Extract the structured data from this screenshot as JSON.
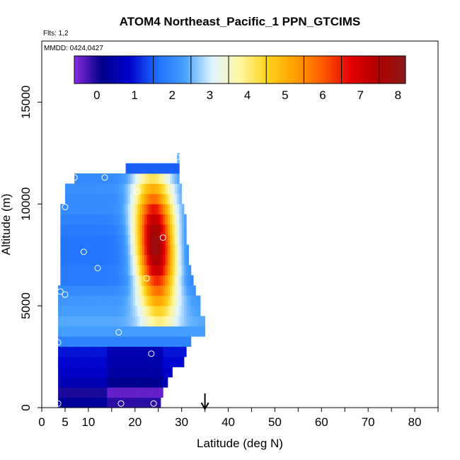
{
  "chart_data": {
    "type": "heatmap",
    "title": "ATOM4 Northeast_Pacific_1 PPN_GTCIMS",
    "annotations": {
      "flights": "Flts: 1,2",
      "dates": "MMDD: 0424,0427"
    },
    "xlabel": "Latitude (deg N)",
    "ylabel": "Altitude (m)",
    "xlim": [
      0,
      85
    ],
    "ylim": [
      0,
      18000
    ],
    "x_ticks": [
      0,
      5,
      10,
      20,
      30,
      40,
      50,
      60,
      70,
      80
    ],
    "x_minor_ticks": [
      15,
      25,
      35,
      45,
      55,
      65,
      75,
      85
    ],
    "y_ticks": [
      0,
      5000,
      10000,
      15000
    ],
    "colorbar": {
      "min": -0.6,
      "max": 8.2,
      "tick_values": [
        0,
        1,
        2,
        3,
        4,
        5,
        6,
        7,
        8
      ],
      "tick_labels": [
        "0",
        "1",
        "2",
        "3",
        "4",
        "5",
        "6",
        "7",
        "8"
      ],
      "colors": [
        "#8a2be2",
        "#00008b",
        "#0000cd",
        "#1e6fff",
        "#46a0ff",
        "#dff4ff",
        "#fff6a0",
        "#ffd21a",
        "#ffa000",
        "#ff5a00",
        "#e60000",
        "#b00000",
        "#8b1a1a"
      ]
    },
    "arrow_latitude": 35,
    "altitude_bins": [
      {
        "alt": 250,
        "lat_min": 3.5,
        "lat_max": 25.5,
        "value": 0.3
      },
      {
        "alt": 750,
        "lat_min": 3.5,
        "lat_max": 26,
        "value": 0.0
      },
      {
        "alt": 1250,
        "lat_min": 3.5,
        "lat_max": 27,
        "value": 0.6
      },
      {
        "alt": 1750,
        "lat_min": 3.5,
        "lat_max": 28,
        "value": 0.8
      },
      {
        "alt": 2250,
        "lat_min": 3.5,
        "lat_max": 30.5,
        "value": 0.9
      },
      {
        "alt": 2750,
        "lat_min": 3.5,
        "lat_max": 31,
        "value": 1.0
      },
      {
        "alt": 3250,
        "lat_min": 3.5,
        "lat_max": 32,
        "value": 1.9
      },
      {
        "alt": 3750,
        "lat_min": 3.5,
        "lat_max": 35,
        "value": 2.3
      },
      {
        "alt": 4250,
        "lat_min": 3.5,
        "lat_max": 35,
        "value": 2.4
      },
      {
        "alt": 4750,
        "lat_min": 3.5,
        "lat_max": 34,
        "value": 2.3
      },
      {
        "alt": 5250,
        "lat_min": 3.5,
        "lat_max": 34,
        "value": 2.2
      },
      {
        "alt": 5750,
        "lat_min": 3.5,
        "lat_max": 33,
        "value": 2.0
      },
      {
        "alt": 6250,
        "lat_min": 4.0,
        "lat_max": 32.5,
        "value": 1.8
      },
      {
        "alt": 6750,
        "lat_min": 4.0,
        "lat_max": 32,
        "value": 1.8
      },
      {
        "alt": 7250,
        "lat_min": 4.0,
        "lat_max": 31.5,
        "value": 1.7
      },
      {
        "alt": 7750,
        "lat_min": 4.0,
        "lat_max": 31.5,
        "value": 1.7
      },
      {
        "alt": 8250,
        "lat_min": 4.0,
        "lat_max": 31,
        "value": 1.7
      },
      {
        "alt": 8750,
        "lat_min": 4.0,
        "lat_max": 31,
        "value": 1.8
      },
      {
        "alt": 9250,
        "lat_min": 4.0,
        "lat_max": 31,
        "value": 1.9
      },
      {
        "alt": 9750,
        "lat_min": 4.0,
        "lat_max": 30.5,
        "value": 2.0
      },
      {
        "alt": 10250,
        "lat_min": 5.0,
        "lat_max": 30,
        "value": 2.0
      },
      {
        "alt": 10750,
        "lat_min": 5.0,
        "lat_max": 30,
        "value": 2.1
      },
      {
        "alt": 11250,
        "lat_min": 7.0,
        "lat_max": 29.5,
        "value": 2.0
      },
      {
        "alt": 11750,
        "lat_min": 18.0,
        "lat_max": 29.5,
        "value": 1.5
      },
      {
        "alt": 12250,
        "lat_min": 29.0,
        "lat_max": 29.5,
        "value": 2.5
      }
    ],
    "sample_points": [
      {
        "lat": 3.5,
        "alt": 200
      },
      {
        "lat": 17,
        "alt": 200
      },
      {
        "lat": 24,
        "alt": 200
      },
      {
        "lat": 23.5,
        "alt": 2650
      },
      {
        "lat": 3.5,
        "alt": 3200
      },
      {
        "lat": 16.5,
        "alt": 3700
      },
      {
        "lat": 4,
        "alt": 5700
      },
      {
        "lat": 5,
        "alt": 5550
      },
      {
        "lat": 12,
        "alt": 6850
      },
      {
        "lat": 22.5,
        "alt": 6350
      },
      {
        "lat": 9,
        "alt": 7650
      },
      {
        "lat": 26,
        "alt": 8350
      },
      {
        "lat": 5,
        "alt": 9850
      },
      {
        "lat": 20.5,
        "alt": 10600
      },
      {
        "lat": 7,
        "alt": 11300
      },
      {
        "lat": 13.5,
        "alt": 11300
      },
      {
        "lat": 29,
        "alt": 12300
      }
    ]
  }
}
